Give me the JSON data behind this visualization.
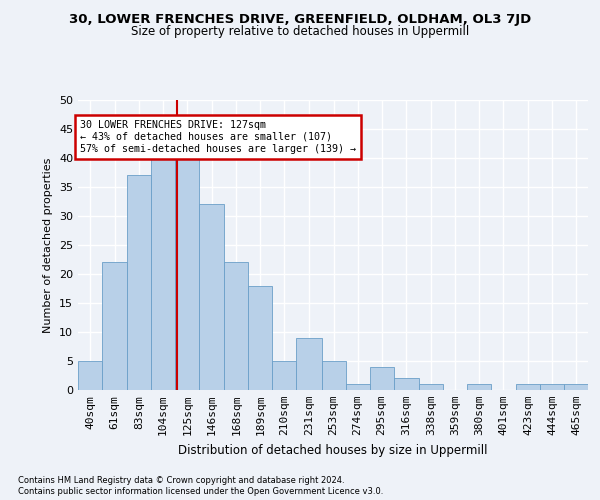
{
  "title1": "30, LOWER FRENCHES DRIVE, GREENFIELD, OLDHAM, OL3 7JD",
  "title2": "Size of property relative to detached houses in Uppermill",
  "xlabel": "Distribution of detached houses by size in Uppermill",
  "ylabel": "Number of detached properties",
  "bin_labels": [
    "40sqm",
    "61sqm",
    "83sqm",
    "104sqm",
    "125sqm",
    "146sqm",
    "168sqm",
    "189sqm",
    "210sqm",
    "231sqm",
    "253sqm",
    "274sqm",
    "295sqm",
    "316sqm",
    "338sqm",
    "359sqm",
    "380sqm",
    "401sqm",
    "423sqm",
    "444sqm",
    "465sqm"
  ],
  "values": [
    5,
    22,
    37,
    41,
    40,
    32,
    22,
    18,
    5,
    9,
    5,
    1,
    4,
    2,
    1,
    0,
    1,
    0,
    1,
    1,
    1
  ],
  "bar_color": "#b8d0e8",
  "bar_edge_color": "#6a9fc8",
  "property_line_x": 127,
  "bin_edges": [
    40,
    61,
    83,
    104,
    125,
    146,
    168,
    189,
    210,
    231,
    253,
    274,
    295,
    316,
    338,
    359,
    380,
    401,
    423,
    444,
    465,
    486
  ],
  "annotation_text": "30 LOWER FRENCHES DRIVE: 127sqm\n← 43% of detached houses are smaller (107)\n57% of semi-detached houses are larger (139) →",
  "annotation_box_color": "#ffffff",
  "annotation_box_edge": "#cc0000",
  "vline_color": "#cc0000",
  "ylim": [
    0,
    50
  ],
  "yticks": [
    0,
    5,
    10,
    15,
    20,
    25,
    30,
    35,
    40,
    45,
    50
  ],
  "footer1": "Contains HM Land Registry data © Crown copyright and database right 2024.",
  "footer2": "Contains public sector information licensed under the Open Government Licence v3.0.",
  "bg_color": "#eef2f8",
  "plot_bg_color": "#eef2f8",
  "grid_color": "#ffffff"
}
